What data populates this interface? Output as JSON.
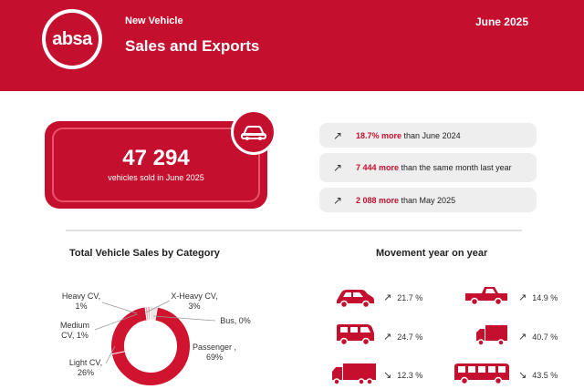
{
  "header": {
    "logo_text": "absa",
    "kicker": "New Vehicle",
    "title": "Sales and Exports",
    "date": "June 2025"
  },
  "kpi": {
    "value": "47 294",
    "label": "vehicles sold in June 2025",
    "badge_icon": "car-icon"
  },
  "stats": [
    {
      "highlight": "18.7% more",
      "rest": " than June 2024",
      "icon": "trend-up-icon"
    },
    {
      "highlight": "7 444 more",
      "rest": " than the same month last year",
      "icon": "trend-up-icon"
    },
    {
      "highlight": "2 088 more",
      "rest": " than May 2025",
      "icon": "trend-up-icon"
    }
  ],
  "category": {
    "title": "Total Vehicle Sales by Category",
    "labels": {
      "passenger": "Passenger , 69%",
      "light_cv": "Light CV, 26%",
      "medium_cv": "Medium CV, 1%",
      "heavy_cv": "Heavy CV, 1%",
      "x_heavy": "X-Heavy CV, 3%",
      "bus": "Bus, 0%"
    }
  },
  "movement": {
    "title": "Movement year on year",
    "items": [
      {
        "vehicle": "passenger-car-icon",
        "trend": "trend-up-icon",
        "value": "21.7 %"
      },
      {
        "vehicle": "pickup-icon",
        "trend": "trend-up-icon",
        "value": "14.9 %"
      },
      {
        "vehicle": "van-icon",
        "trend": "trend-up-icon",
        "value": "24.7 %"
      },
      {
        "vehicle": "truck-icon",
        "trend": "trend-up-icon",
        "value": "40.7 %"
      },
      {
        "vehicle": "heavy-truck-icon",
        "trend": "trend-down-icon",
        "value": "12.3 %"
      },
      {
        "vehicle": "bus-icon",
        "trend": "trend-down-icon",
        "value": "43.5 %"
      }
    ]
  },
  "colors": {
    "brand_red": "#c4102e",
    "donut_main": "#d0142f",
    "donut_light": "#f0a7b2",
    "donut_pale": "#e7e7e7",
    "pill_bg": "#eeeeee"
  },
  "chart_data": {
    "type": "pie",
    "title": "Total Vehicle Sales by Category",
    "categories": [
      "Passenger",
      "Light CV",
      "Medium CV",
      "Heavy CV",
      "X-Heavy CV",
      "Bus"
    ],
    "values": [
      69,
      26,
      1,
      1,
      3,
      0
    ],
    "unit": "%"
  }
}
